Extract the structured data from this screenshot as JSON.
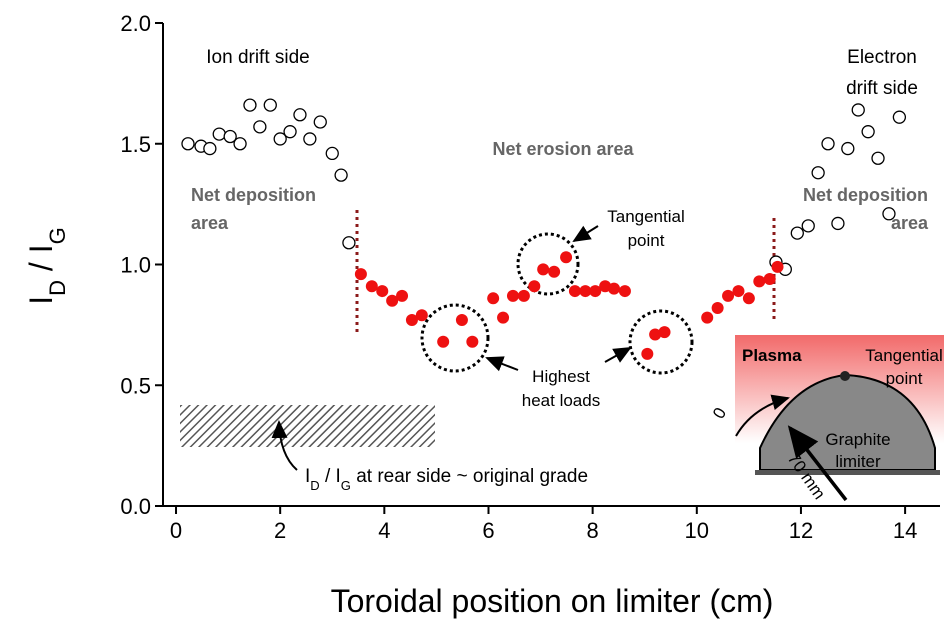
{
  "chart_data": {
    "type": "scatter",
    "xlabel": "Toroidal position on limiter (cm)",
    "ylabel_parts": [
      {
        "text": "I"
      },
      {
        "text": "D",
        "sub": true
      },
      {
        "text": " / I"
      },
      {
        "text": "G",
        "sub": true
      }
    ],
    "xlim": [
      -0.25,
      14.67
    ],
    "ylim": [
      0,
      2
    ],
    "xticks": [
      0,
      2,
      4,
      6,
      8,
      10,
      12,
      14
    ],
    "yticks": [
      {
        "value": 0,
        "label": "0.0"
      },
      0.5,
      {
        "value": 1,
        "label": "1.0"
      },
      1.5,
      {
        "value": 2,
        "label": "2.0"
      }
    ],
    "series": [
      {
        "color": "#000000",
        "marker": "open",
        "x": [
          0.23,
          0.48,
          0.65,
          0.83,
          1.04,
          1.23,
          1.42,
          1.61,
          1.81,
          2.0,
          2.19,
          2.38,
          2.57,
          2.77,
          3.0,
          3.17,
          3.32,
          11.52,
          11.7,
          11.93,
          12.14,
          12.33,
          12.52,
          12.71,
          12.9,
          13.1,
          13.29,
          13.48,
          13.69,
          13.89
        ],
        "values": [
          1.5,
          1.49,
          1.48,
          1.54,
          1.53,
          1.5,
          1.66,
          1.57,
          1.66,
          1.52,
          1.55,
          1.62,
          1.52,
          1.59,
          1.46,
          1.37,
          1.09,
          1.01,
          0.98,
          1.13,
          1.16,
          1.38,
          1.5,
          1.17,
          1.48,
          1.64,
          1.55,
          1.44,
          1.21,
          1.61
        ]
      },
      {
        "color": "#ee1111",
        "marker": "filled",
        "x": [
          3.55,
          3.76,
          3.96,
          4.15,
          4.34,
          4.53,
          4.72,
          5.13,
          5.49,
          5.69,
          6.09,
          6.28,
          6.47,
          6.68,
          6.88,
          7.05,
          7.26,
          7.49,
          7.66,
          7.86,
          8.05,
          8.24,
          8.41,
          8.62,
          9.05,
          9.2,
          9.38,
          10.2,
          10.4,
          10.6,
          10.8,
          11.0,
          11.2,
          11.4,
          11.55
        ],
        "values": [
          0.96,
          0.91,
          0.89,
          0.85,
          0.87,
          0.77,
          0.79,
          0.68,
          0.77,
          0.68,
          0.86,
          0.78,
          0.87,
          0.87,
          0.91,
          0.98,
          0.97,
          1.03,
          0.89,
          0.89,
          0.89,
          0.91,
          0.9,
          0.89,
          0.63,
          0.71,
          0.72,
          0.78,
          0.82,
          0.87,
          0.89,
          0.86,
          0.93,
          0.94,
          0.99
        ]
      }
    ],
    "annotations": {
      "ion_side": "Ion drift side",
      "electron_side": [
        "Electron",
        "drift side"
      ],
      "net_erosion": "Net erosion area",
      "net_deposition_left": [
        "Net deposition",
        "area"
      ],
      "net_deposition_right": [
        "Net deposition",
        "area"
      ],
      "tangential": [
        "Tangential",
        "point"
      ],
      "heat_loads": [
        "Highest",
        "heat loads"
      ],
      "rear_side_parts": [
        {
          "text": "I"
        },
        {
          "text": "D",
          "sub": true
        },
        {
          "text": " / I"
        },
        {
          "text": "G",
          "sub": true
        },
        {
          "text": " at rear side ~ original grade"
        }
      ]
    },
    "inset": {
      "plasma": "Plasma",
      "tangential": [
        "Tangential",
        "point"
      ],
      "limiter": [
        "Graphite",
        "limiter"
      ],
      "zero": "0",
      "distance": "70 mm"
    }
  }
}
